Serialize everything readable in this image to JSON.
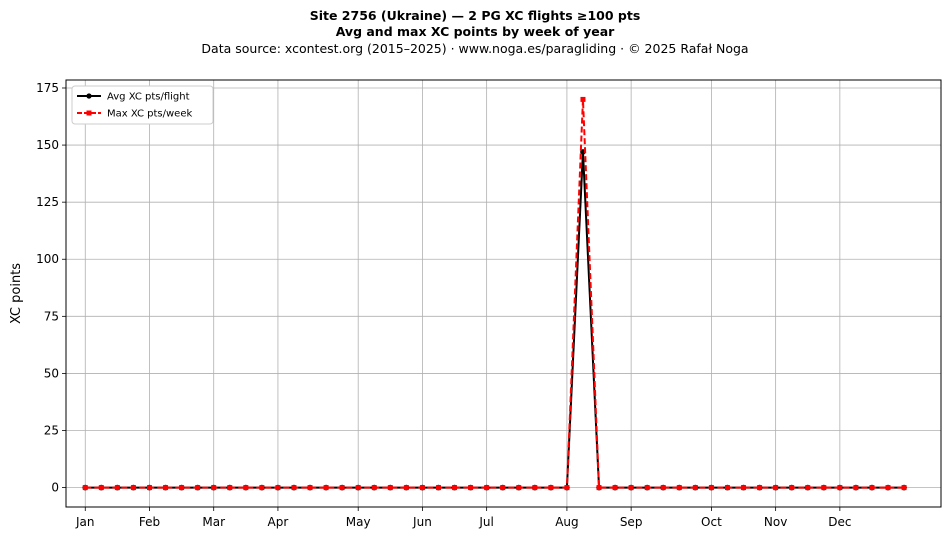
{
  "chart_data": {
    "type": "line",
    "title": "Site 2756 (Ukraine)  —  2 PG XC flights ≥100 pts",
    "subtitle": "Avg and max XC points by week of year",
    "source": "Data source: xcontest.org (2015–2025)  ·  www.noga.es/paragliding  ·  © 2025 Rafał Noga",
    "xlabel": "",
    "ylabel": "XC points",
    "xlim": [
      -1.2,
      53.3
    ],
    "ylim": [
      -8.5,
      178.5
    ],
    "yticks": [
      0,
      25,
      50,
      75,
      100,
      125,
      150,
      175
    ],
    "xticks": [
      {
        "label": "Jan",
        "x": 0
      },
      {
        "label": "Feb",
        "x": 4
      },
      {
        "label": "Mar",
        "x": 8
      },
      {
        "label": "Apr",
        "x": 12
      },
      {
        "label": "May",
        "x": 17
      },
      {
        "label": "Jun",
        "x": 21
      },
      {
        "label": "Jul",
        "x": 25
      },
      {
        "label": "Aug",
        "x": 30
      },
      {
        "label": "Sep",
        "x": 34
      },
      {
        "label": "Oct",
        "x": 39
      },
      {
        "label": "Nov",
        "x": 43
      },
      {
        "label": "Dec",
        "x": 47
      }
    ],
    "x": [
      0,
      1,
      2,
      3,
      4,
      5,
      6,
      7,
      8,
      9,
      10,
      11,
      12,
      13,
      14,
      15,
      16,
      17,
      18,
      19,
      20,
      21,
      22,
      23,
      24,
      25,
      26,
      27,
      28,
      29,
      30,
      31,
      32,
      33,
      34,
      35,
      36,
      37,
      38,
      39,
      40,
      41,
      42,
      43,
      44,
      45,
      46,
      47,
      48,
      49,
      50,
      51
    ],
    "grid": true,
    "legend_position": "top-left",
    "series": [
      {
        "name": "Avg XC pts/flight",
        "color": "#000000",
        "style": "solid",
        "marker": "circle",
        "values": [
          0,
          0,
          0,
          0,
          0,
          0,
          0,
          0,
          0,
          0,
          0,
          0,
          0,
          0,
          0,
          0,
          0,
          0,
          0,
          0,
          0,
          0,
          0,
          0,
          0,
          0,
          0,
          0,
          0,
          0,
          0,
          147,
          0,
          0,
          0,
          0,
          0,
          0,
          0,
          0,
          0,
          0,
          0,
          0,
          0,
          0,
          0,
          0,
          0,
          0,
          0,
          0
        ]
      },
      {
        "name": "Max XC pts/week",
        "color": "#ff0000",
        "style": "dashed",
        "marker": "square",
        "values": [
          0,
          0,
          0,
          0,
          0,
          0,
          0,
          0,
          0,
          0,
          0,
          0,
          0,
          0,
          0,
          0,
          0,
          0,
          0,
          0,
          0,
          0,
          0,
          0,
          0,
          0,
          0,
          0,
          0,
          0,
          0,
          170,
          0,
          0,
          0,
          0,
          0,
          0,
          0,
          0,
          0,
          0,
          0,
          0,
          0,
          0,
          0,
          0,
          0,
          0,
          0,
          0
        ]
      }
    ]
  }
}
